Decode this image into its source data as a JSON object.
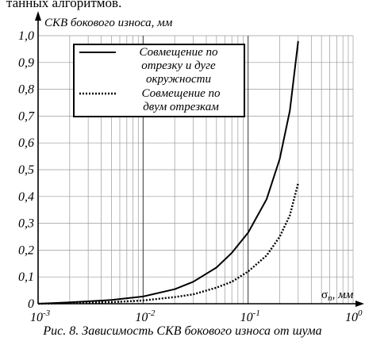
{
  "page": {
    "top_text": "танных алгоритмов.",
    "caption": "Рис. 8. Зависимость СКВ бокового износа от шума"
  },
  "chart_data": {
    "type": "line",
    "title": "",
    "ylabel": "СКВ бокового износа, мм",
    "xlabel": "σп, мм",
    "xlabel_base": "σ",
    "xlabel_sub": "п",
    "xlabel_unit": ", мм",
    "x_scale": "log",
    "xlim": [
      0.001,
      1.0
    ],
    "ylim": [
      0.0,
      1.0
    ],
    "grid": true,
    "legend_position": "top-center",
    "yticks": [
      "0",
      "0,1",
      "0,2",
      "0,3",
      "0,4",
      "0,5",
      "0,6",
      "0,7",
      "0,8",
      "0,9",
      "1,0"
    ],
    "xticks": [
      {
        "base": "10",
        "exp": "-3"
      },
      {
        "base": "10",
        "exp": "-2"
      },
      {
        "base": "10",
        "exp": "-1"
      },
      {
        "base": "10",
        "exp": "0"
      }
    ],
    "series": [
      {
        "name": "Совмещение по отрезку и дуге окружности",
        "legend_lines": [
          "Совмещение по",
          "отрезку и дуге",
          "окружности"
        ],
        "style": "solid",
        "points": [
          [
            0.001,
            0.0
          ],
          [
            0.002,
            0.005
          ],
          [
            0.005,
            0.014
          ],
          [
            0.01,
            0.027
          ],
          [
            0.02,
            0.054
          ],
          [
            0.03,
            0.082
          ],
          [
            0.05,
            0.135
          ],
          [
            0.07,
            0.19
          ],
          [
            0.1,
            0.265
          ],
          [
            0.15,
            0.39
          ],
          [
            0.2,
            0.54
          ],
          [
            0.25,
            0.72
          ],
          [
            0.3,
            0.98
          ]
        ]
      },
      {
        "name": "Совмещение по двум отрезкам",
        "legend_lines": [
          "Совмещение по",
          "двум отрезкам"
        ],
        "style": "dotted",
        "points": [
          [
            0.001,
            0.0
          ],
          [
            0.002,
            0.002
          ],
          [
            0.005,
            0.006
          ],
          [
            0.01,
            0.012
          ],
          [
            0.02,
            0.025
          ],
          [
            0.03,
            0.035
          ],
          [
            0.05,
            0.06
          ],
          [
            0.07,
            0.082
          ],
          [
            0.1,
            0.12
          ],
          [
            0.15,
            0.18
          ],
          [
            0.2,
            0.25
          ],
          [
            0.25,
            0.33
          ],
          [
            0.3,
            0.45
          ]
        ]
      }
    ]
  }
}
